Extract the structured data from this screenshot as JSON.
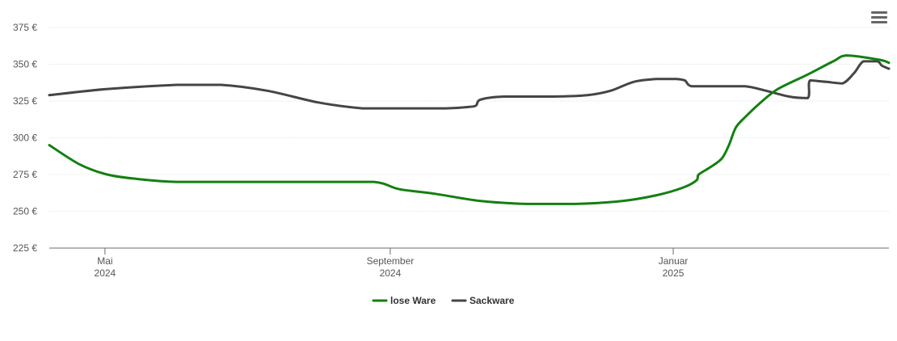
{
  "menu": {
    "icon": "hamburger-menu-icon"
  },
  "colors": {
    "lose": "#138011",
    "sack": "#454545",
    "axis": "#6b6b6b",
    "grid": "#e6e6e6"
  },
  "chart_data": {
    "type": "line",
    "y_ticks": [
      "225 €",
      "250 €",
      "275 €",
      "300 €",
      "325 €",
      "350 €",
      "375 €"
    ],
    "y_tick_values": [
      225,
      250,
      275,
      300,
      325,
      350,
      375
    ],
    "x_ticks": [
      {
        "month": "Mai",
        "year": "2024",
        "date": "2024-05-01"
      },
      {
        "month": "September",
        "year": "2024",
        "date": "2024-09-01"
      },
      {
        "month": "Januar",
        "year": "2025",
        "date": "2025-01-01"
      }
    ],
    "ylim": [
      225,
      375
    ],
    "xlim": [
      "2024-04-07",
      "2025-04-04"
    ],
    "grid": true,
    "legend_position": "bottom-center",
    "series": [
      {
        "name": "lose Ware",
        "color": "#138011",
        "points": [
          [
            "2024-04-07",
            295
          ],
          [
            "2024-04-20",
            282
          ],
          [
            "2024-05-02",
            275
          ],
          [
            "2024-05-15",
            272
          ],
          [
            "2024-06-01",
            270
          ],
          [
            "2024-07-01",
            270
          ],
          [
            "2024-08-01",
            270
          ],
          [
            "2024-08-25",
            270
          ],
          [
            "2024-09-05",
            265
          ],
          [
            "2024-09-20",
            262
          ],
          [
            "2024-10-10",
            257
          ],
          [
            "2024-10-30",
            255
          ],
          [
            "2024-11-20",
            255
          ],
          [
            "2024-12-10",
            257
          ],
          [
            "2024-12-25",
            261
          ],
          [
            "2025-01-05",
            266
          ],
          [
            "2025-01-11",
            271
          ],
          [
            "2025-01-12",
            275
          ],
          [
            "2025-01-17",
            280
          ],
          [
            "2025-01-22",
            286
          ],
          [
            "2025-01-25",
            295
          ],
          [
            "2025-01-28",
            307
          ],
          [
            "2025-02-01",
            314
          ],
          [
            "2025-02-07",
            323
          ],
          [
            "2025-02-15",
            333
          ],
          [
            "2025-02-28",
            343
          ],
          [
            "2025-03-11",
            352
          ],
          [
            "2025-03-17",
            356
          ],
          [
            "2025-03-31",
            353
          ],
          [
            "2025-04-04",
            351
          ]
        ]
      },
      {
        "name": "Sackware",
        "color": "#454545",
        "points": [
          [
            "2024-04-07",
            329
          ],
          [
            "2024-05-01",
            333
          ],
          [
            "2024-06-01",
            336
          ],
          [
            "2024-06-20",
            336
          ],
          [
            "2024-07-10",
            332
          ],
          [
            "2024-08-01",
            324
          ],
          [
            "2024-08-20",
            320
          ],
          [
            "2024-09-01",
            320
          ],
          [
            "2024-09-25",
            320
          ],
          [
            "2024-10-05",
            321
          ],
          [
            "2024-10-08",
            322
          ],
          [
            "2024-10-10",
            326
          ],
          [
            "2024-10-20",
            328
          ],
          [
            "2024-11-10",
            328
          ],
          [
            "2024-11-25",
            329
          ],
          [
            "2024-12-05",
            332
          ],
          [
            "2024-12-15",
            338
          ],
          [
            "2024-12-25",
            340
          ],
          [
            "2025-01-02",
            340
          ],
          [
            "2025-01-06",
            339
          ],
          [
            "2025-01-09",
            335
          ],
          [
            "2025-01-20",
            335
          ],
          [
            "2025-02-01",
            335
          ],
          [
            "2025-02-10",
            332
          ],
          [
            "2025-02-20",
            328
          ],
          [
            "2025-02-28",
            327
          ],
          [
            "2025-03-01",
            339
          ],
          [
            "2025-03-08",
            338
          ],
          [
            "2025-03-15",
            337
          ],
          [
            "2025-03-20",
            344
          ],
          [
            "2025-03-24",
            352
          ],
          [
            "2025-03-30",
            352
          ],
          [
            "2025-04-01",
            349
          ],
          [
            "2025-04-04",
            347
          ]
        ]
      }
    ]
  }
}
